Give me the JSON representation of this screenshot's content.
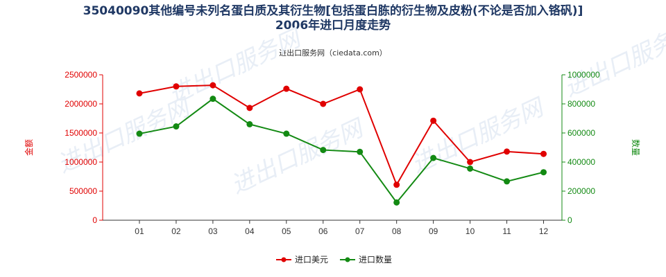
{
  "chart_data": {
    "type": "line",
    "title_line1": "35040090其他编号未列名蛋白质及其衍生物[包括蛋白胨的衍生物及皮粉(不论是否加入铬矾)]",
    "title_line2": "2006年进口月度走势",
    "source": "进出口服务网（ciedata.com）",
    "watermark": "进出口服务网",
    "categories": [
      "01",
      "02",
      "03",
      "04",
      "05",
      "06",
      "07",
      "08",
      "09",
      "10",
      "11",
      "12"
    ],
    "y_left": {
      "label": "金额",
      "range": [
        0,
        2500000
      ],
      "ticks": [
        "0",
        "500000",
        "1000000",
        "1500000",
        "2000000",
        "2500000"
      ],
      "color": "#e00000"
    },
    "y_right": {
      "label": "数量",
      "range": [
        0,
        1000000
      ],
      "ticks": [
        "0",
        "200000",
        "400000",
        "600000",
        "800000",
        "1000000"
      ],
      "color": "#138a13"
    },
    "series": [
      {
        "name": "进口美元",
        "axis": "left",
        "color": "#e00000",
        "values": [
          2180000,
          2300000,
          2320000,
          1930000,
          2260000,
          2000000,
          2250000,
          610000,
          1710000,
          1000000,
          1180000,
          1140000
        ]
      },
      {
        "name": "进口数量",
        "axis": "right",
        "color": "#138a13",
        "values": [
          595000,
          645000,
          835000,
          660000,
          595000,
          483000,
          470000,
          122000,
          428000,
          355000,
          267000,
          330000
        ]
      }
    ],
    "grid": false,
    "legend": "bottom-center"
  }
}
